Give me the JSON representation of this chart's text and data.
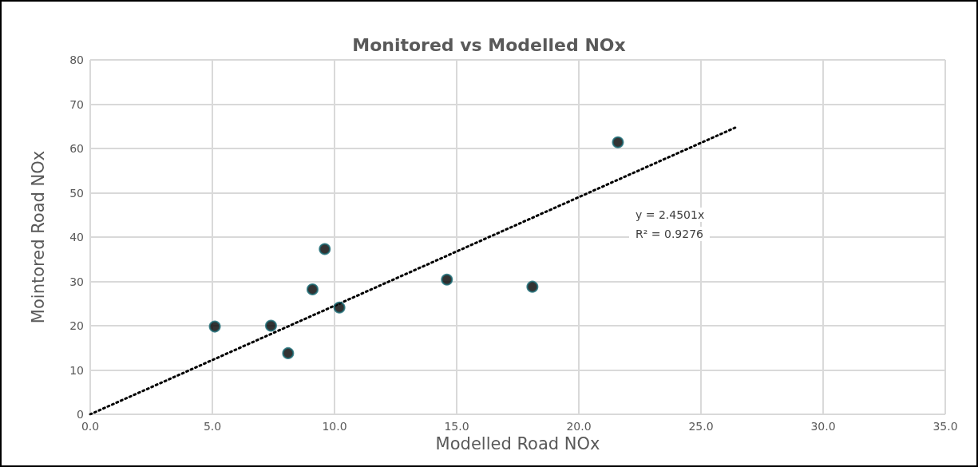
{
  "chart_data": {
    "type": "scatter",
    "title": "Monitored vs Modelled NOx",
    "xlabel": "Modelled Road NOx",
    "ylabel": "Mointored Road NOx",
    "annotations": [
      "y = 2.4501x",
      "R² = 0.9276"
    ],
    "series": [
      {
        "color": "#000000",
        "x": [
          5.1,
          7.4,
          8.1,
          9.1,
          9.6,
          10.2,
          14.6,
          18.1,
          21.6
        ],
        "values": [
          19.8,
          20.0,
          13.8,
          28.2,
          37.3,
          24.1,
          30.4,
          28.8,
          61.4
        ]
      },
      {
        "type": "line",
        "color": "#000000",
        "marker": "none",
        "line_style": "dotted",
        "x": [
          0,
          26.4
        ],
        "values": [
          0,
          64.7
        ]
      }
    ],
    "xlim": [
      0,
      35
    ],
    "xticks": [
      {
        "value": 0,
        "label": "0.0"
      },
      {
        "value": 5,
        "label": "5.0"
      },
      {
        "value": 10,
        "label": "10.0"
      },
      {
        "value": 15,
        "label": "15.0"
      },
      {
        "value": 20,
        "label": "20.0"
      },
      {
        "value": 25,
        "label": "25.0"
      },
      {
        "value": 30,
        "label": "30.0"
      },
      {
        "value": 35,
        "label": "35.0"
      }
    ],
    "ylim": [
      0,
      80
    ],
    "yticks": [
      0,
      10,
      20,
      30,
      40,
      50,
      60,
      70,
      80
    ],
    "grid": true,
    "marker": "circle"
  }
}
